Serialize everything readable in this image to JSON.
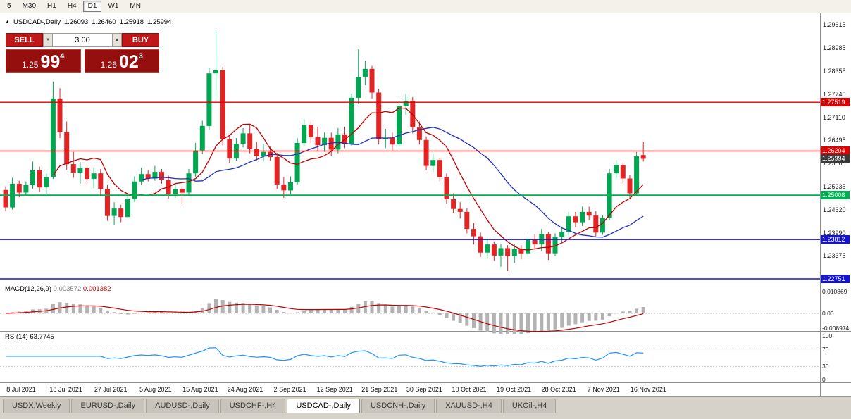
{
  "toolbar": {
    "timeframes": [
      {
        "label": "5",
        "active": false
      },
      {
        "label": "M30",
        "active": false
      },
      {
        "label": "H1",
        "active": false
      },
      {
        "label": "H4",
        "active": false
      },
      {
        "label": "D1",
        "active": true
      },
      {
        "label": "W1",
        "active": false
      },
      {
        "label": "MN",
        "active": false
      }
    ]
  },
  "chart": {
    "marker": "▲",
    "symbol": "USDCAD-,Daily",
    "ohlc": {
      "open": "1.26093",
      "high": "1.26460",
      "low": "1.25918",
      "close": "1.25994"
    },
    "trade_panel": {
      "sell_label": "SELL",
      "buy_label": "BUY",
      "volume": "3.00",
      "sell_price": {
        "small": "1.25",
        "big": "99",
        "sup": "4"
      },
      "buy_price": {
        "small": "1.26",
        "big": "02",
        "sup": "3"
      }
    },
    "colors": {
      "up": "#00a650",
      "down": "#e32424",
      "ma_fast": "#c00000",
      "ma_slow": "#2030c0",
      "hline_red": "#e00000",
      "hline_green": "#00b050",
      "hline_blue": "#1414d0"
    },
    "price_axis": [
      {
        "text": "1.29615",
        "style": "plain"
      },
      {
        "text": "1.28985",
        "style": "plain"
      },
      {
        "text": "1.28355",
        "style": "plain"
      },
      {
        "text": "1.27740",
        "style": "plain"
      },
      {
        "text": "1.27519",
        "style": "red"
      },
      {
        "text": "1.27110",
        "style": "plain"
      },
      {
        "text": "1.26495",
        "style": "plain"
      },
      {
        "text": "1.26204",
        "style": "red"
      },
      {
        "text": "1.25865",
        "style": "plain"
      },
      {
        "text": "1.25994",
        "style": "current"
      },
      {
        "text": "1.25235",
        "style": "plain"
      },
      {
        "text": "1.25008",
        "style": "green"
      },
      {
        "text": "1.24620",
        "style": "plain"
      },
      {
        "text": "1.23990",
        "style": "plain"
      },
      {
        "text": "1.23812",
        "style": "blue"
      },
      {
        "text": "1.23375",
        "style": "plain"
      },
      {
        "text": "1.22751",
        "style": "blue"
      }
    ],
    "hlines": [
      {
        "price": 1.27519,
        "style": "red"
      },
      {
        "price": 1.26204,
        "style": "red"
      },
      {
        "price": 1.25008,
        "style": "green"
      },
      {
        "price": 1.23812,
        "style": "blue"
      },
      {
        "price": 1.22751,
        "style": "blue"
      }
    ],
    "candles": [
      [
        1.2515,
        1.2525,
        1.2458,
        1.2468
      ],
      [
        1.2468,
        1.2548,
        1.2462,
        1.2532
      ],
      [
        1.2532,
        1.254,
        1.2495,
        1.2508
      ],
      [
        1.2508,
        1.2538,
        1.25,
        1.2528
      ],
      [
        1.2528,
        1.2592,
        1.2518,
        1.2568
      ],
      [
        1.2568,
        1.2578,
        1.251,
        1.2522
      ],
      [
        1.2522,
        1.256,
        1.2505,
        1.255
      ],
      [
        1.255,
        1.2808,
        1.2545,
        1.2762
      ],
      [
        1.2762,
        1.279,
        1.2655,
        1.2672
      ],
      [
        1.2672,
        1.27,
        1.257,
        1.2585
      ],
      [
        1.2585,
        1.2618,
        1.2548,
        1.2562
      ],
      [
        1.2562,
        1.259,
        1.2532,
        1.2574
      ],
      [
        1.2574,
        1.2582,
        1.2528,
        1.2545
      ],
      [
        1.2545,
        1.2576,
        1.252,
        1.256
      ],
      [
        1.256,
        1.2572,
        1.2498,
        1.2518
      ],
      [
        1.2518,
        1.253,
        1.2432,
        1.2445
      ],
      [
        1.2445,
        1.2482,
        1.242,
        1.2465
      ],
      [
        1.2465,
        1.2475,
        1.2428,
        1.2442
      ],
      [
        1.2442,
        1.2502,
        1.2438,
        1.249
      ],
      [
        1.249,
        1.2552,
        1.2482,
        1.2538
      ],
      [
        1.2538,
        1.2575,
        1.2528,
        1.2558
      ],
      [
        1.2558,
        1.257,
        1.2538,
        1.2546
      ],
      [
        1.2546,
        1.258,
        1.254,
        1.2564
      ],
      [
        1.2564,
        1.2572,
        1.2532,
        1.2542
      ],
      [
        1.2542,
        1.2554,
        1.2492,
        1.2505
      ],
      [
        1.2505,
        1.2532,
        1.2494,
        1.2518
      ],
      [
        1.2518,
        1.2526,
        1.2478,
        1.2508
      ],
      [
        1.2508,
        1.2572,
        1.2502,
        1.256
      ],
      [
        1.256,
        1.2642,
        1.255,
        1.2622
      ],
      [
        1.2622,
        1.2702,
        1.2612,
        1.2688
      ],
      [
        1.2688,
        1.2845,
        1.2678,
        1.283
      ],
      [
        1.283,
        1.2948,
        1.2762,
        1.2838
      ],
      [
        1.2838,
        1.2848,
        1.2635,
        1.2652
      ],
      [
        1.2652,
        1.2665,
        1.2588,
        1.26
      ],
      [
        1.26,
        1.2655,
        1.2594,
        1.264
      ],
      [
        1.264,
        1.2682,
        1.263,
        1.2668
      ],
      [
        1.2668,
        1.269,
        1.2614,
        1.2626
      ],
      [
        1.2626,
        1.2645,
        1.2595,
        1.2606
      ],
      [
        1.2606,
        1.264,
        1.2592,
        1.2618
      ],
      [
        1.2618,
        1.2632,
        1.2594,
        1.2604
      ],
      [
        1.2604,
        1.2615,
        1.2518,
        1.253
      ],
      [
        1.253,
        1.255,
        1.2494,
        1.2514
      ],
      [
        1.2514,
        1.2552,
        1.2504,
        1.2536
      ],
      [
        1.2536,
        1.2655,
        1.253,
        1.2642
      ],
      [
        1.2642,
        1.2706,
        1.2632,
        1.269
      ],
      [
        1.269,
        1.27,
        1.2642,
        1.2658
      ],
      [
        1.2658,
        1.2686,
        1.2622,
        1.2636
      ],
      [
        1.2636,
        1.267,
        1.2618,
        1.2656
      ],
      [
        1.2656,
        1.267,
        1.2608,
        1.2624
      ],
      [
        1.2624,
        1.2682,
        1.2614,
        1.2665
      ],
      [
        1.2665,
        1.2686,
        1.2628,
        1.264
      ],
      [
        1.264,
        1.2775,
        1.2634,
        1.2764
      ],
      [
        1.2764,
        1.2895,
        1.2748,
        1.282
      ],
      [
        1.282,
        1.2864,
        1.2798,
        1.2842
      ],
      [
        1.2842,
        1.285,
        1.2762,
        1.2778
      ],
      [
        1.2778,
        1.2788,
        1.2638,
        1.2652
      ],
      [
        1.2652,
        1.268,
        1.2628,
        1.2656
      ],
      [
        1.2656,
        1.267,
        1.2622,
        1.2638
      ],
      [
        1.2638,
        1.2755,
        1.263,
        1.2742
      ],
      [
        1.2742,
        1.2774,
        1.2718,
        1.2756
      ],
      [
        1.2756,
        1.2766,
        1.2668,
        1.2684
      ],
      [
        1.2684,
        1.27,
        1.2638,
        1.265
      ],
      [
        1.265,
        1.266,
        1.2568,
        1.258
      ],
      [
        1.258,
        1.2612,
        1.2564,
        1.2596
      ],
      [
        1.2596,
        1.2602,
        1.2538,
        1.255
      ],
      [
        1.255,
        1.256,
        1.2478,
        1.249
      ],
      [
        1.249,
        1.2506,
        1.2452,
        1.2464
      ],
      [
        1.2464,
        1.2482,
        1.2438,
        1.2456
      ],
      [
        1.2456,
        1.2466,
        1.2398,
        1.241
      ],
      [
        1.241,
        1.2426,
        1.2368,
        1.239
      ],
      [
        1.239,
        1.24,
        1.2334,
        1.2346
      ],
      [
        1.2346,
        1.2382,
        1.233,
        1.2368
      ],
      [
        1.2368,
        1.2376,
        1.2324,
        1.2338
      ],
      [
        1.2338,
        1.237,
        1.2308,
        1.2358
      ],
      [
        1.2358,
        1.2366,
        1.2296,
        1.2336
      ],
      [
        1.2336,
        1.2368,
        1.2318,
        1.2356
      ],
      [
        1.2356,
        1.2366,
        1.2328,
        1.2344
      ],
      [
        1.2344,
        1.239,
        1.2338,
        1.238
      ],
      [
        1.238,
        1.2396,
        1.2354,
        1.2368
      ],
      [
        1.2368,
        1.241,
        1.235,
        1.2396
      ],
      [
        1.2396,
        1.2402,
        1.2326,
        1.2344
      ],
      [
        1.2344,
        1.2398,
        1.2336,
        1.2388
      ],
      [
        1.2388,
        1.2416,
        1.2374,
        1.2402
      ],
      [
        1.2402,
        1.2456,
        1.2392,
        1.2444
      ],
      [
        1.2444,
        1.2456,
        1.2414,
        1.2428
      ],
      [
        1.2428,
        1.247,
        1.2418,
        1.2456
      ],
      [
        1.2456,
        1.247,
        1.2434,
        1.2446
      ],
      [
        1.2446,
        1.2458,
        1.2388,
        1.24
      ],
      [
        1.24,
        1.2448,
        1.2394,
        1.244
      ],
      [
        1.244,
        1.2572,
        1.2434,
        1.256
      ],
      [
        1.256,
        1.2596,
        1.2548,
        1.2582
      ],
      [
        1.2582,
        1.259,
        1.2532,
        1.2546
      ],
      [
        1.2546,
        1.2556,
        1.2494,
        1.2506
      ],
      [
        1.2506,
        1.2618,
        1.2498,
        1.2606
      ],
      [
        1.26093,
        1.2646,
        1.25918,
        1.25994
      ]
    ]
  },
  "macd": {
    "label": "MACD(12,26,9)",
    "value_main": "0.003572",
    "value_signal": "0.001382",
    "axis": [
      "0.010869",
      "0.00",
      "-0.008974"
    ]
  },
  "rsi": {
    "label": "RSI(14)",
    "value": "63.7745",
    "axis": [
      "100",
      "70",
      "30",
      "0"
    ],
    "levels": [
      70,
      30
    ]
  },
  "date_axis": [
    "8 Jul 2021",
    "18 Jul 2021",
    "27 Jul 2021",
    "5 Aug 2021",
    "15 Aug 2021",
    "24 Aug 2021",
    "2 Sep 2021",
    "12 Sep 2021",
    "21 Sep 2021",
    "30 Sep 2021",
    "10 Oct 2021",
    "19 Oct 2021",
    "28 Oct 2021",
    "7 Nov 2021",
    "16 Nov 2021"
  ],
  "tabs": [
    {
      "label": "USDX,Weekly",
      "active": false
    },
    {
      "label": "EURUSD-,Daily",
      "active": false
    },
    {
      "label": "AUDUSD-,Daily",
      "active": false
    },
    {
      "label": "USDCHF-,H4",
      "active": false
    },
    {
      "label": "USDCAD-,Daily",
      "active": true
    },
    {
      "label": "USDCNH-,Daily",
      "active": false
    },
    {
      "label": "XAUUSD-,H4",
      "active": false
    },
    {
      "label": "UKOil-,H4",
      "active": false
    }
  ]
}
